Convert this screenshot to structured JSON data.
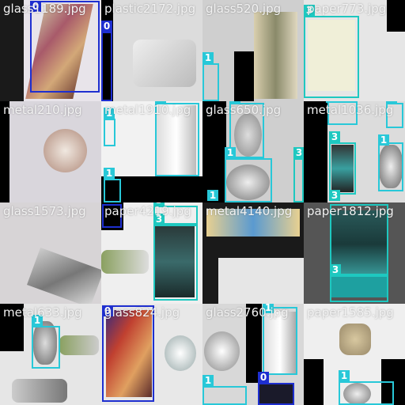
{
  "tiles": [
    {
      "name": "glass1189.jpg"
    },
    {
      "name": "plastic2172.jpg"
    },
    {
      "name": "glass520.jpg"
    },
    {
      "name": "paper773.jpg"
    },
    {
      "name": "metal210.jpg"
    },
    {
      "name": "metal1910.jpg"
    },
    {
      "name": "glass650.jpg"
    },
    {
      "name": "metal1036.jpg"
    },
    {
      "name": "glass1573.jpg"
    },
    {
      "name": "paper4219.jpg"
    },
    {
      "name": "metal4140.jpg"
    },
    {
      "name": "paper1812.jpg"
    },
    {
      "name": "metal633.jpg"
    },
    {
      "name": "glass824.jpg"
    },
    {
      "name": "glass2760.jpg"
    },
    {
      "name": "paper1585.jpg"
    }
  ],
  "class_labels": {
    "c0": "0",
    "c1": "1",
    "c3": "3"
  },
  "colors": {
    "class0": "#1e2fd0",
    "class1": "#28c8d8",
    "class3": "#1ec8c0"
  }
}
